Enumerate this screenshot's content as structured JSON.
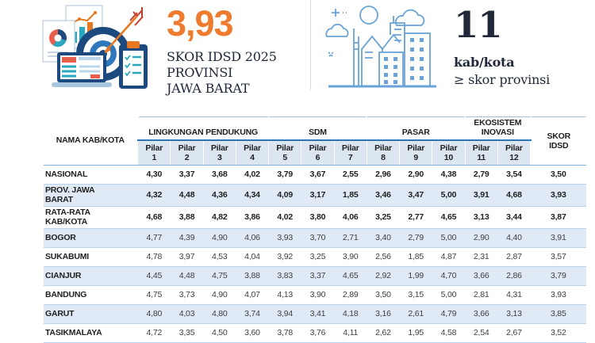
{
  "hero": {
    "score_value": "3,93",
    "score_caption_lines": [
      "SKOR IDSD 2025",
      "PROVINSI",
      "JAWA BARAT"
    ],
    "count_value": "11",
    "count_caption_bold": "kab/kota",
    "count_caption_sub": "≥ skor provinsi",
    "accent_orange": "#EE7B2E",
    "accent_blue": "#2176BD",
    "icons": [
      "target-arrow-charts-illustration",
      "city-buildings-illustration"
    ]
  },
  "table": {
    "name_header": "NAMA KAB/KOTA",
    "skor_header": "SKOR IDSD",
    "groups": [
      {
        "label": "LINGKUNGAN PENDUKUNG",
        "span": 4
      },
      {
        "label": "SDM",
        "span": 3
      },
      {
        "label": "PASAR",
        "span": 3
      },
      {
        "label": "EKOSISTEM INOVASI",
        "span": 2
      }
    ],
    "pilar_word": "Pilar",
    "pilar_numbers": [
      "1",
      "2",
      "3",
      "4",
      "5",
      "6",
      "7",
      "8",
      "9",
      "10",
      "11",
      "12"
    ],
    "header_bg": "#DCE6F1",
    "stripe_bg": "#DFEAF6",
    "group_underline_color": "#2E75B6",
    "rows": [
      {
        "name": "NASIONAL",
        "values": [
          "4,30",
          "3,37",
          "3,68",
          "4,02",
          "3,79",
          "3,67",
          "2,55",
          "2,96",
          "2,90",
          "4,38",
          "2,79",
          "3,54"
        ],
        "skor": "3,50",
        "emph": true,
        "stripe": false
      },
      {
        "name": "PROV. JAWA BARAT",
        "values": [
          "4,32",
          "4,48",
          "4,36",
          "4,34",
          "4,09",
          "3,17",
          "1,85",
          "3,46",
          "3,47",
          "5,00",
          "3,91",
          "4,68"
        ],
        "skor": "3,93",
        "emph": true,
        "stripe": true
      },
      {
        "name": "RATA-RATA KAB/KOTA",
        "values": [
          "4,68",
          "3,88",
          "4,82",
          "3,86",
          "4,02",
          "3,80",
          "4,06",
          "3,25",
          "2,77",
          "4,65",
          "3,13",
          "3,44"
        ],
        "skor": "3,87",
        "emph": true,
        "stripe": false
      },
      {
        "name": "BOGOR",
        "values": [
          "4,77",
          "4,39",
          "4,90",
          "4,06",
          "3,93",
          "3,70",
          "2,71",
          "3,40",
          "2,79",
          "5,00",
          "2,90",
          "4,40"
        ],
        "skor": "3,91",
        "emph": false,
        "stripe": true
      },
      {
        "name": "SUKABUMI",
        "values": [
          "4,78",
          "3,97",
          "4,53",
          "4,04",
          "3,92",
          "3,25",
          "3,90",
          "2,56",
          "1,85",
          "4,87",
          "2,31",
          "2,87"
        ],
        "skor": "3,57",
        "emph": false,
        "stripe": false
      },
      {
        "name": "CIANJUR",
        "values": [
          "4,45",
          "4,48",
          "4,75",
          "3,88",
          "3,83",
          "3,37",
          "4,65",
          "2,92",
          "1,99",
          "4,70",
          "3,66",
          "2,86"
        ],
        "skor": "3,79",
        "emph": false,
        "stripe": true
      },
      {
        "name": "BANDUNG",
        "values": [
          "4,75",
          "3,73",
          "4,90",
          "4,07",
          "4,13",
          "3,90",
          "2,89",
          "3,50",
          "3,15",
          "5,00",
          "2,81",
          "4,31"
        ],
        "skor": "3,93",
        "emph": false,
        "stripe": false
      },
      {
        "name": "GARUT",
        "values": [
          "4,80",
          "4,03",
          "4,80",
          "3,74",
          "3,94",
          "3,41",
          "4,18",
          "3,16",
          "2,61",
          "4,79",
          "3,66",
          "3,13"
        ],
        "skor": "3,85",
        "emph": false,
        "stripe": true
      },
      {
        "name": "TASIKMALAYA",
        "values": [
          "4,72",
          "3,35",
          "4,50",
          "3,60",
          "3,78",
          "3,76",
          "4,11",
          "2,62",
          "1,95",
          "4,58",
          "2,54",
          "2,67"
        ],
        "skor": "3,52",
        "emph": false,
        "stripe": false
      }
    ]
  }
}
